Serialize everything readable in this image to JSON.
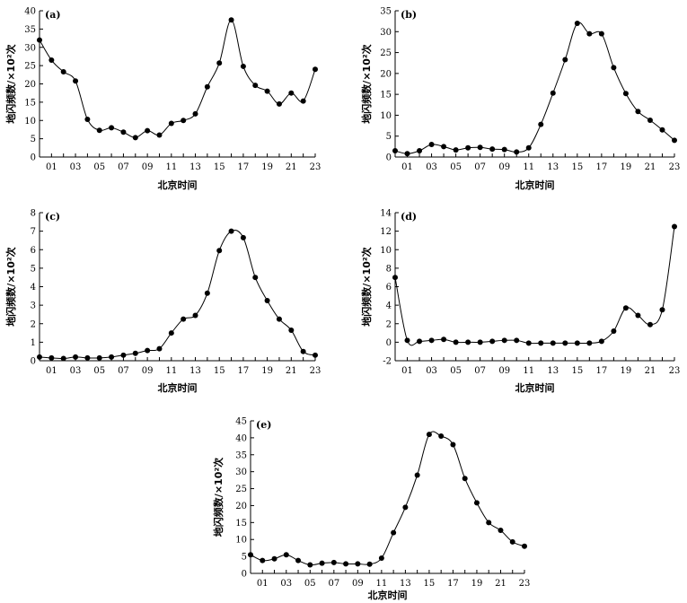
{
  "chart_data": [
    {
      "type": "line",
      "title": "(a)",
      "xlabel": "北京时间",
      "ylabel": "地闪频数/×10²次",
      "ylim": [
        0,
        40
      ],
      "yticks": [
        0,
        5,
        10,
        15,
        20,
        25,
        30,
        35,
        40
      ],
      "xticks": [
        "01",
        "03",
        "05",
        "07",
        "09",
        "11",
        "13",
        "15",
        "17",
        "19",
        "21",
        "23"
      ],
      "series": [
        {
          "x": [
            0,
            1,
            2,
            3,
            4,
            5,
            6,
            7,
            8,
            9,
            10,
            11,
            12,
            13,
            14,
            15,
            16,
            17,
            18,
            19,
            20,
            21,
            22,
            23
          ],
          "values": [
            32,
            26.5,
            23.3,
            20.8,
            10.3,
            7.3,
            8,
            6.8,
            5.3,
            7.2,
            6,
            9.2,
            10,
            11.8,
            19.2,
            25.7,
            37.5,
            24.8,
            19.6,
            18,
            14.5,
            17.5,
            15.3,
            24
          ]
        }
      ]
    },
    {
      "type": "line",
      "title": "(b)",
      "xlabel": "北京时间",
      "ylabel": "地闪频数/×10²次",
      "ylim": [
        0,
        35
      ],
      "yticks": [
        0,
        5,
        10,
        15,
        20,
        25,
        30,
        35
      ],
      "xticks": [
        "01",
        "03",
        "05",
        "07",
        "09",
        "11",
        "13",
        "15",
        "17",
        "19",
        "21",
        "23"
      ],
      "series": [
        {
          "x": [
            0,
            1,
            2,
            3,
            4,
            5,
            6,
            7,
            8,
            9,
            10,
            11,
            12,
            13,
            14,
            15,
            16,
            17,
            18,
            19,
            20,
            21,
            22,
            23
          ],
          "values": [
            1.5,
            0.8,
            1.5,
            3,
            2.5,
            1.7,
            2.2,
            2.3,
            1.9,
            1.8,
            1.2,
            2.2,
            7.8,
            15.3,
            23.3,
            32,
            29.5,
            29.5,
            21.4,
            15.2,
            10.9,
            8.8,
            6.5,
            4
          ]
        }
      ]
    },
    {
      "type": "line",
      "title": "(c)",
      "xlabel": "北京时间",
      "ylabel": "地闪频数/×10²次",
      "ylim": [
        0,
        8
      ],
      "yticks": [
        0,
        1,
        2,
        3,
        4,
        5,
        6,
        7,
        8
      ],
      "xticks": [
        "01",
        "03",
        "05",
        "07",
        "09",
        "11",
        "13",
        "15",
        "17",
        "19",
        "21",
        "23"
      ],
      "series": [
        {
          "x": [
            0,
            1,
            2,
            3,
            4,
            5,
            6,
            7,
            8,
            9,
            10,
            11,
            12,
            13,
            14,
            15,
            16,
            17,
            18,
            19,
            20,
            21,
            22,
            23
          ],
          "values": [
            0.2,
            0.15,
            0.12,
            0.2,
            0.15,
            0.15,
            0.2,
            0.3,
            0.4,
            0.55,
            0.65,
            1.5,
            2.25,
            2.45,
            3.65,
            5.95,
            7,
            6.65,
            4.5,
            3.25,
            2.25,
            1.65,
            0.5,
            0.3
          ]
        }
      ]
    },
    {
      "type": "line",
      "title": "(d)",
      "xlabel": "北京时间",
      "ylabel": "地闪频数/×10²次",
      "ylim": [
        -2,
        14
      ],
      "yticks": [
        -2,
        0,
        2,
        4,
        6,
        8,
        10,
        12,
        14
      ],
      "xticks": [
        "01",
        "03",
        "05",
        "07",
        "09",
        "11",
        "13",
        "15",
        "17",
        "19",
        "21",
        "23"
      ],
      "series": [
        {
          "x": [
            0,
            1,
            2,
            3,
            4,
            5,
            6,
            7,
            8,
            9,
            10,
            11,
            12,
            13,
            14,
            15,
            16,
            17,
            18,
            19,
            20,
            21,
            22,
            23
          ],
          "values": [
            7,
            0.2,
            0.1,
            0.2,
            0.3,
            0,
            0,
            0,
            0.1,
            0.2,
            0.2,
            -0.1,
            -0.1,
            -0.1,
            -0.1,
            -0.1,
            -0.1,
            0.1,
            1.2,
            3.7,
            2.9,
            1.9,
            3.5,
            12.5
          ]
        }
      ]
    },
    {
      "type": "line",
      "title": "(e)",
      "xlabel": "北京时间",
      "ylabel": "地闪频数/×10²次",
      "ylim": [
        0,
        45
      ],
      "yticks": [
        0,
        5,
        10,
        15,
        20,
        25,
        30,
        35,
        40,
        45
      ],
      "xticks": [
        "01",
        "03",
        "05",
        "07",
        "09",
        "11",
        "13",
        "15",
        "17",
        "19",
        "21",
        "23"
      ],
      "series": [
        {
          "x": [
            0,
            1,
            2,
            3,
            4,
            5,
            6,
            7,
            8,
            9,
            10,
            11,
            12,
            13,
            14,
            15,
            16,
            17,
            18,
            19,
            20,
            21,
            22,
            23
          ],
          "values": [
            5.5,
            3.8,
            4.3,
            5.5,
            3.8,
            2.5,
            3,
            3.2,
            2.8,
            2.8,
            2.7,
            4.5,
            12,
            19.5,
            29,
            41,
            40.5,
            38,
            28,
            20.8,
            15,
            12.7,
            9.3,
            8
          ]
        }
      ]
    }
  ]
}
